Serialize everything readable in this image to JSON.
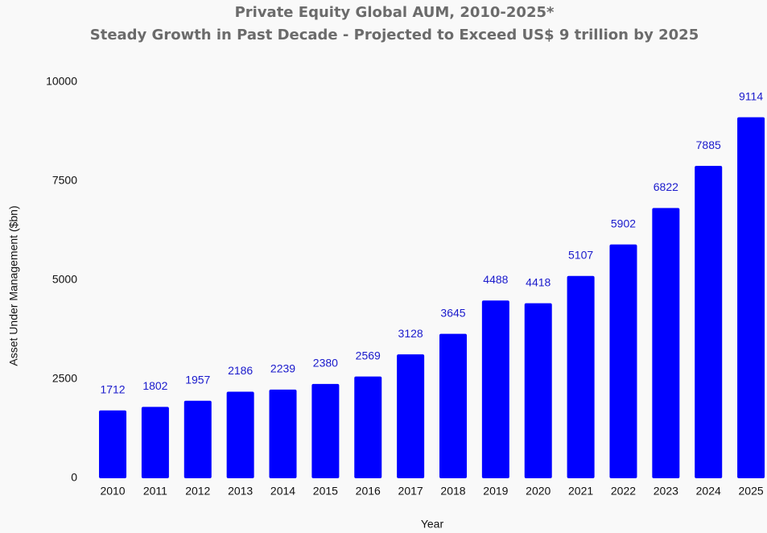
{
  "chart_data": {
    "type": "bar",
    "title": "Private Equity Global AUM, 2010-2025*",
    "subtitle": "Steady Growth in Past Decade - Projected to Exceed US$ 9 trillion by 2025",
    "x_label": "Year",
    "y_label": "Asset Under Management ($bn)",
    "categories": [
      "2010",
      "2011",
      "2012",
      "2013",
      "2014",
      "2015",
      "2016",
      "2017",
      "2018",
      "2019",
      "2020",
      "2021",
      "2022",
      "2023",
      "2024",
      "2025"
    ],
    "values": [
      1712,
      1802,
      1957,
      2186,
      2239,
      2380,
      2569,
      3128,
      3645,
      4488,
      4418,
      5107,
      5902,
      6822,
      7885,
      9114
    ],
    "color": "#0000ff",
    "label_color": "#1a1acc",
    "ylim": [
      0,
      10000
    ],
    "yticks": [
      0,
      2500,
      5000,
      7500,
      10000
    ],
    "grid": false
  }
}
